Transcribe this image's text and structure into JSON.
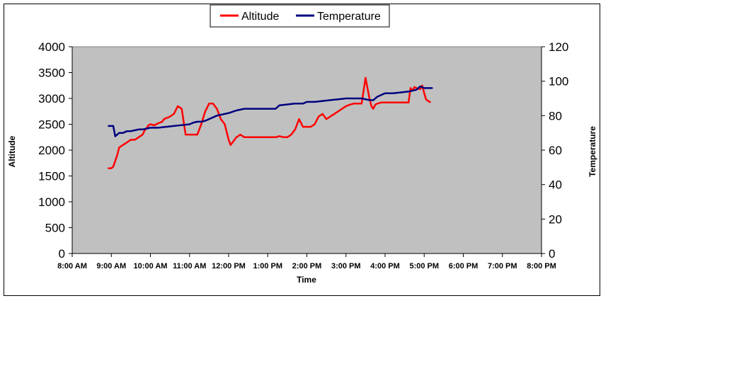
{
  "chart_data": {
    "type": "line",
    "xlabel": "Time",
    "ylabel_left": "Altitude",
    "ylabel_right": "Temperature",
    "x_ticks": [
      "8:00 AM",
      "9:00 AM",
      "10:00 AM",
      "11:00 AM",
      "12:00 PM",
      "1:00 PM",
      "2:00 PM",
      "3:00 PM",
      "4:00 PM",
      "5:00 PM",
      "6:00 PM",
      "7:00 PM",
      "8:00 PM"
    ],
    "y_left_ticks": [
      "0",
      "500",
      "1000",
      "1500",
      "2000",
      "2500",
      "3000",
      "3500",
      "4000"
    ],
    "y_right_ticks": [
      "0",
      "20",
      "40",
      "60",
      "80",
      "100",
      "120"
    ],
    "ylim_left": [
      0,
      4000
    ],
    "ylim_right": [
      0,
      120
    ],
    "xlim_hours": [
      8,
      20
    ],
    "plot_background": "#c0c0c0",
    "grid": false,
    "legend_position": "top-center",
    "series": [
      {
        "name": "Altitude",
        "axis": "left",
        "color": "#ff0000",
        "x_hours": [
          8.93,
          9.0,
          9.05,
          9.08,
          9.15,
          9.2,
          9.3,
          9.4,
          9.5,
          9.6,
          9.7,
          9.8,
          9.85,
          9.9,
          9.95,
          10.0,
          10.1,
          10.2,
          10.3,
          10.35,
          10.5,
          10.6,
          10.7,
          10.8,
          10.9,
          11.0,
          11.05,
          11.1,
          11.2,
          11.3,
          11.4,
          11.5,
          11.6,
          11.7,
          11.75,
          11.8,
          11.9,
          12.0,
          12.05,
          12.1,
          12.2,
          12.3,
          12.4,
          12.5,
          12.6,
          12.7,
          12.8,
          12.9,
          13.0,
          13.1,
          13.2,
          13.3,
          13.4,
          13.5,
          13.6,
          13.7,
          13.8,
          13.9,
          14.0,
          14.1,
          14.2,
          14.3,
          14.4,
          14.5,
          14.6,
          14.7,
          14.8,
          14.9,
          15.0,
          15.1,
          15.2,
          15.3,
          15.4,
          15.5,
          15.6,
          15.65,
          15.7,
          15.75,
          15.8,
          15.9,
          16.0,
          16.2,
          16.4,
          16.6,
          16.65,
          16.7,
          16.75,
          16.8,
          16.9,
          16.95,
          17.0,
          17.05,
          17.1,
          17.15
        ],
        "values": [
          1650,
          1650,
          1680,
          1750,
          1900,
          2050,
          2100,
          2150,
          2200,
          2200,
          2250,
          2300,
          2380,
          2420,
          2480,
          2500,
          2480,
          2520,
          2550,
          2600,
          2650,
          2700,
          2850,
          2800,
          2300,
          2300,
          2300,
          2300,
          2300,
          2500,
          2750,
          2900,
          2900,
          2800,
          2700,
          2600,
          2500,
          2200,
          2100,
          2150,
          2250,
          2300,
          2250,
          2250,
          2250,
          2250,
          2250,
          2250,
          2250,
          2250,
          2250,
          2270,
          2250,
          2250,
          2300,
          2400,
          2600,
          2450,
          2450,
          2450,
          2500,
          2650,
          2700,
          2600,
          2650,
          2700,
          2750,
          2800,
          2850,
          2880,
          2900,
          2900,
          2900,
          3400,
          3000,
          2850,
          2800,
          2880,
          2900,
          2920,
          2920,
          2920,
          2920,
          2920,
          3200,
          3150,
          3220,
          3200,
          3180,
          3250,
          3100,
          2980,
          2950,
          2930
        ]
      },
      {
        "name": "Temperature",
        "axis": "right",
        "color": "#000080",
        "x_hours": [
          8.93,
          9.05,
          9.1,
          9.2,
          9.3,
          9.4,
          9.5,
          9.6,
          9.7,
          9.8,
          9.9,
          10.0,
          10.2,
          10.4,
          10.6,
          10.8,
          11.0,
          11.1,
          11.2,
          11.3,
          11.4,
          11.5,
          11.7,
          11.9,
          12.0,
          12.2,
          12.4,
          12.6,
          12.8,
          13.0,
          13.2,
          13.3,
          13.5,
          13.7,
          13.9,
          14.0,
          14.2,
          14.4,
          14.6,
          14.8,
          15.0,
          15.2,
          15.4,
          15.6,
          15.7,
          15.8,
          15.9,
          16.0,
          16.2,
          16.4,
          16.6,
          16.8,
          16.9,
          17.0,
          17.1,
          17.2
        ],
        "values": [
          74,
          74,
          68,
          70,
          70,
          71,
          71,
          71.5,
          72,
          72,
          72.5,
          73,
          73,
          73.5,
          74,
          74.5,
          75,
          76,
          76.5,
          76.5,
          77,
          78,
          80,
          81,
          81.5,
          83,
          84,
          84,
          84,
          84,
          84,
          86,
          86.5,
          87,
          87,
          88,
          88,
          88.5,
          89,
          89.5,
          90,
          90,
          90,
          89,
          89,
          91,
          92,
          93,
          93,
          93.5,
          94,
          95,
          97,
          96,
          96,
          96
        ]
      }
    ]
  }
}
